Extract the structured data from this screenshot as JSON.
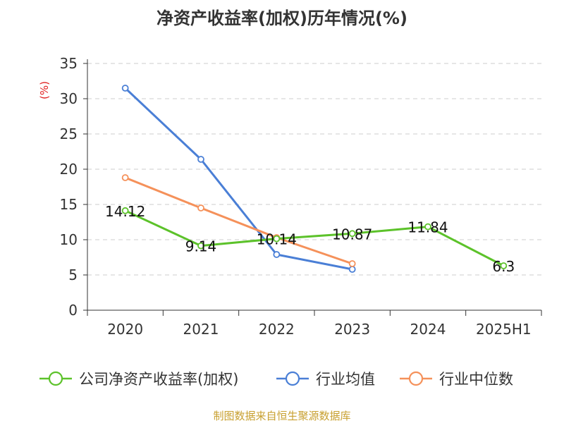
{
  "chart_data": {
    "type": "line",
    "title": "净资产收益率(加权)历年情况(%)",
    "ylabel": "(%)",
    "xlabel": "",
    "categories": [
      "2020",
      "2021",
      "2022",
      "2023",
      "2024",
      "2025H1"
    ],
    "ylim": [
      0,
      35
    ],
    "yticks": [
      0,
      5,
      10,
      15,
      20,
      25,
      30,
      35
    ],
    "grid": "horizontal-dashed",
    "legend_position": "bottom",
    "series": [
      {
        "name": "公司净资产收益率(加权)",
        "color": "#5cc22a",
        "values": [
          14.12,
          9.14,
          10.14,
          10.87,
          11.84,
          6.3
        ],
        "data_labels": [
          "14.12",
          "9.14",
          "10.14",
          "10.87",
          "11.84",
          "6.3"
        ]
      },
      {
        "name": "行业均值",
        "color": "#4a7fd6",
        "values": [
          31.5,
          21.4,
          7.9,
          5.8,
          null,
          null
        ]
      },
      {
        "name": "行业中位数",
        "color": "#f5915a",
        "values": [
          18.8,
          14.5,
          10.3,
          6.6,
          null,
          null
        ]
      }
    ]
  },
  "source": "制图数据来自恒生聚源数据库"
}
